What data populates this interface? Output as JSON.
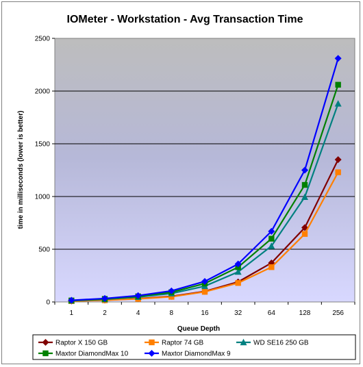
{
  "chart_data": {
    "type": "line",
    "title": "IOMeter - Workstation - Avg Transaction Time",
    "xlabel": "Queue Depth",
    "ylabel": "time in milliseconds (lower is better)",
    "categories": [
      "1",
      "2",
      "4",
      "8",
      "16",
      "32",
      "64",
      "128",
      "256"
    ],
    "ylim": [
      0,
      2500
    ],
    "yticks": [
      0,
      500,
      1000,
      1500,
      2000,
      2500
    ],
    "grid": true,
    "legend_position": "bottom",
    "series": [
      {
        "name": "Raptor X 150 GB",
        "color": "#800000",
        "marker": "diamond",
        "values": [
          9,
          17,
          32,
          53,
          100,
          190,
          370,
          705,
          1350
        ]
      },
      {
        "name": "Raptor 74 GB",
        "color": "#ff7f00",
        "marker": "square",
        "values": [
          8,
          16,
          29,
          49,
          96,
          180,
          330,
          645,
          1230
        ]
      },
      {
        "name": "WD SE16 250 GB",
        "color": "#008080",
        "marker": "triangle",
        "values": [
          12,
          25,
          47,
          80,
          150,
          285,
          530,
          995,
          1880
        ]
      },
      {
        "name": "Maxtor DiamondMax 10",
        "color": "#008000",
        "marker": "square",
        "values": [
          14,
          29,
          53,
          92,
          175,
          330,
          600,
          1110,
          2060
        ]
      },
      {
        "name": "Maxtor DiamondMax 9",
        "color": "#0000ff",
        "marker": "diamond",
        "values": [
          16,
          33,
          60,
          105,
          195,
          360,
          670,
          1250,
          2310
        ]
      }
    ]
  }
}
